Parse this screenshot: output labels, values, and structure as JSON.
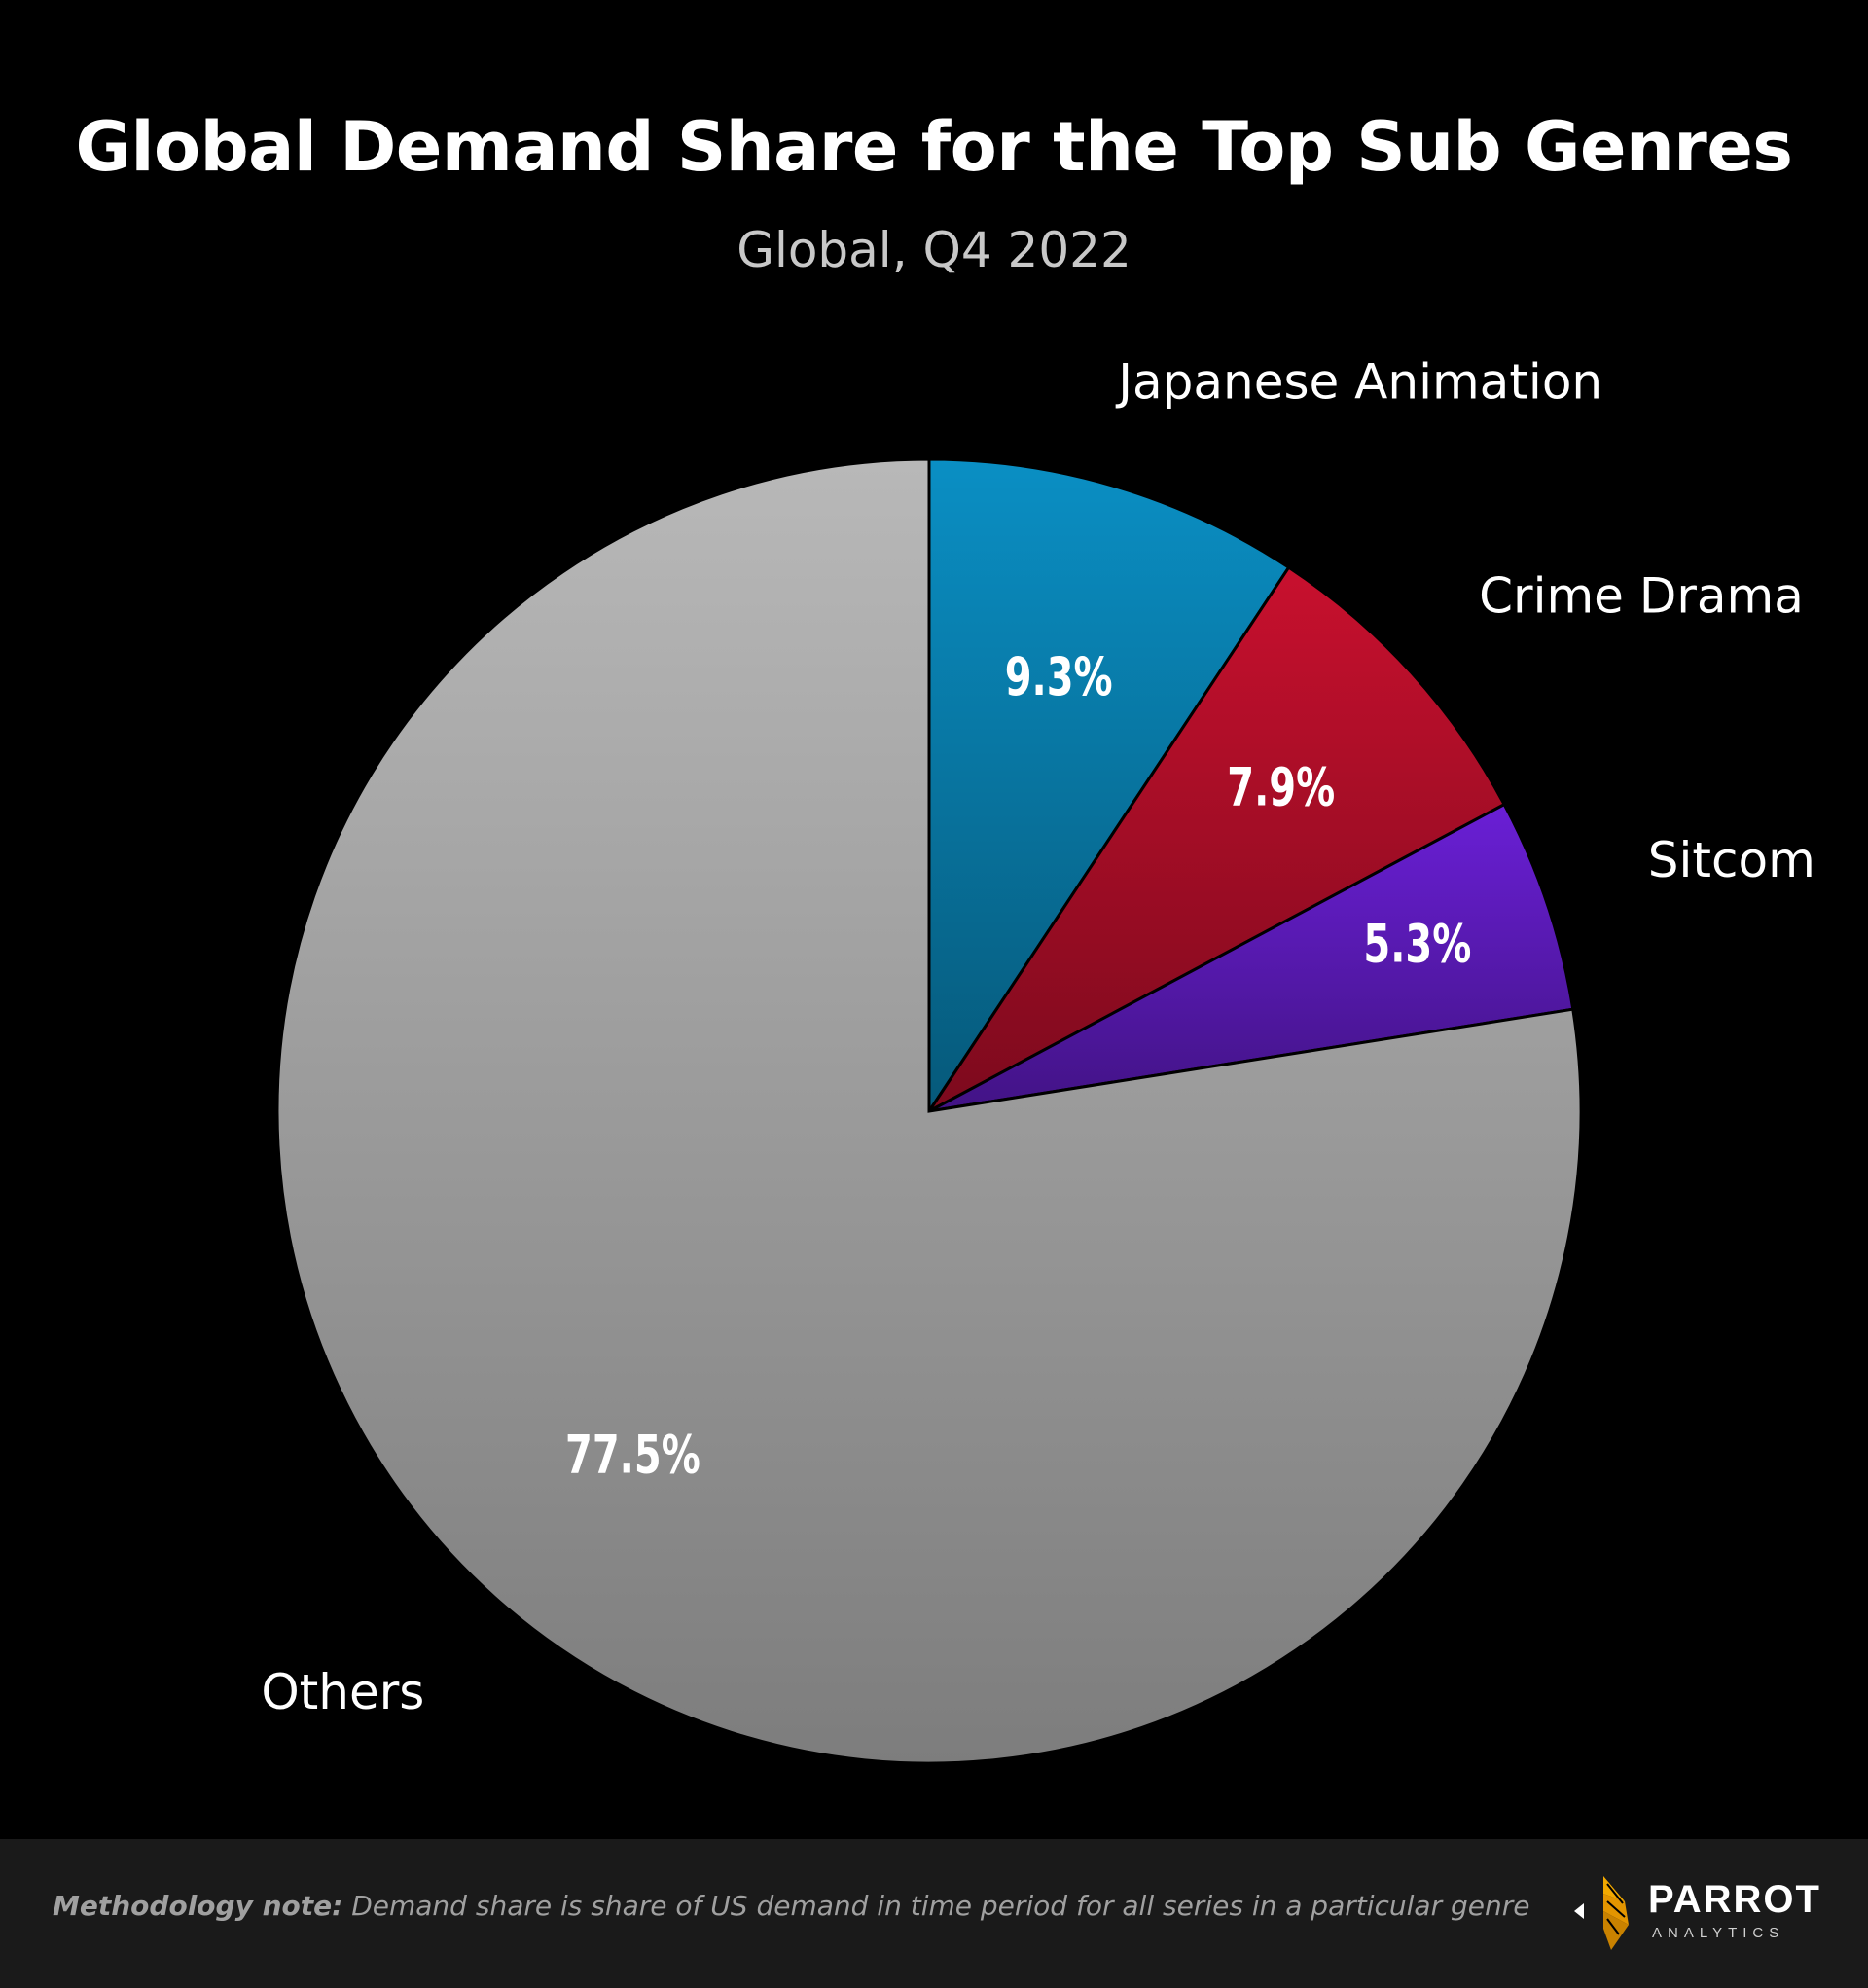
{
  "chart_data": {
    "type": "pie",
    "title": "Global Demand Share for the Top Sub Genres",
    "subtitle": "Global, Q4 2022",
    "categories": [
      "Japanese Animation",
      "Crime Drama",
      "Sitcom",
      "Others"
    ],
    "values": [
      9.3,
      7.9,
      5.3,
      77.5
    ],
    "value_labels": [
      "9.3%",
      "7.9%",
      "5.3%",
      "77.5%"
    ],
    "colors": [
      "#0a8fc4",
      "#c8102e",
      "#6a1fd6",
      "#b8b8b8"
    ],
    "start": "12 o'clock",
    "direction": "clockwise",
    "legend": "none (category labels placed beside slices)"
  },
  "footer": {
    "note_label": "Methodology note:",
    "note_text": " Demand share is share of US demand in time period for all series in a particular genre"
  },
  "logo": {
    "name": "PARROT",
    "sub": "ANALYTICS",
    "icon": "parrot-logo-icon"
  },
  "colors": {
    "background": "#000000",
    "footer_bg": "#1a1a1a",
    "logo_gold": "#f2a900"
  }
}
